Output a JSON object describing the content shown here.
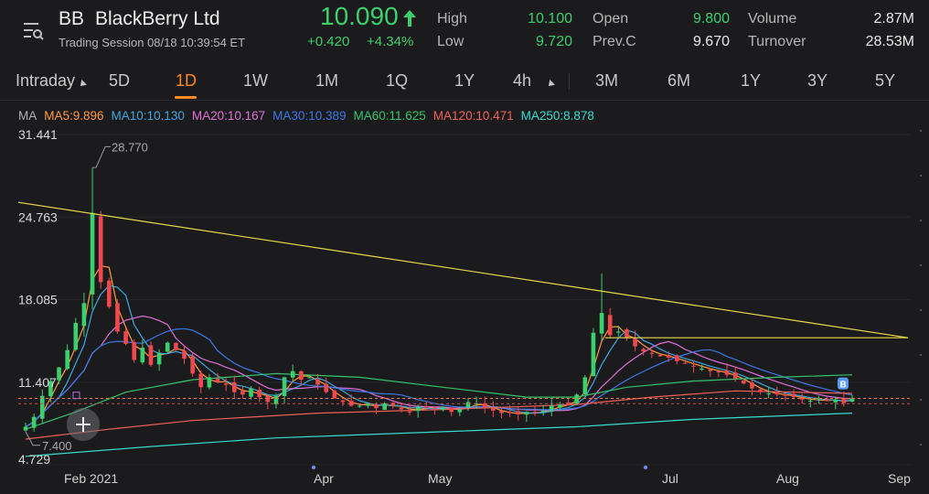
{
  "header": {
    "symbol": "BB",
    "company": "BlackBerry Ltd",
    "session": "Trading Session  08/18 10:39:54 ET",
    "price": "10.090",
    "change": "+0.420",
    "change_pct": "+4.34%",
    "stats": [
      {
        "label": "High",
        "value": "10.100",
        "color": "#3ccf6d"
      },
      {
        "label": "Low",
        "value": "9.720",
        "color": "#3ccf6d"
      },
      {
        "label": "Open",
        "value": "9.800",
        "color": "#3ccf6d"
      },
      {
        "label": "Prev.C",
        "value": "9.670",
        "color": "#e8e8e8"
      },
      {
        "label": "Volume",
        "value": "2.87M",
        "color": "#e8e8e8"
      },
      {
        "label": "Turnover",
        "value": "28.53M",
        "color": "#e8e8e8"
      }
    ]
  },
  "tabs": [
    "Intraday",
    "5D",
    "1D",
    "1W",
    "1M",
    "1Q",
    "1Y",
    "4h",
    "3M",
    "6M",
    "1Y",
    "3Y",
    "5Y"
  ],
  "active_tab": "1D",
  "ma": {
    "label": "MA",
    "items": [
      {
        "text": "MA5:9.896",
        "color": "#ff9a3c"
      },
      {
        "text": "MA10:10.130",
        "color": "#3aa8e0"
      },
      {
        "text": "MA20:10.167",
        "color": "#e070d8"
      },
      {
        "text": "MA30:10.389",
        "color": "#3c78e6"
      },
      {
        "text": "MA60:11.625",
        "color": "#33c56a"
      },
      {
        "text": "MA120:10.471",
        "color": "#f0605a"
      },
      {
        "text": "MA250:8.878",
        "color": "#35dcd2"
      }
    ]
  },
  "chart_data": {
    "type": "candlestick",
    "y_ticks": [
      "31.441",
      "24.763",
      "18.085",
      "11.407",
      "4.729"
    ],
    "ylim": [
      4.729,
      31.441
    ],
    "x_ticks": [
      "Feb 2021",
      "Apr",
      "May",
      "Jul",
      "Aug",
      "Sep"
    ],
    "annotations": {
      "high_label": "28.770",
      "low_label": "7.400"
    },
    "markers": [
      "B"
    ],
    "colors": {
      "up": "#3ccf6d",
      "down": "#f0484e",
      "trendline": "#e8d94a"
    },
    "closes": [
      7.8,
      8.6,
      10.3,
      11.5,
      12.6,
      14.0,
      16.2,
      17.8,
      25.1,
      19.5,
      17.5,
      15.5,
      14.5,
      13.2,
      14.2,
      12.8,
      13.8,
      14.6,
      14.0,
      13.3,
      12.1,
      11.0,
      11.8,
      11.4,
      11.2,
      10.6,
      10.4,
      10.9,
      10.2,
      9.8,
      10.3,
      11.8,
      12.3,
      11.6,
      11.8,
      11.2,
      10.6,
      10.1,
      9.8,
      9.5,
      9.5,
      9.7,
      9.3,
      9.7,
      9.5,
      9.2,
      9.0,
      9.4,
      9.4,
      9.3,
      9.4,
      9.0,
      9.2,
      9.8,
      9.7,
      9.3,
      9.1,
      8.9,
      8.9,
      8.8,
      9.0,
      8.9,
      9.1,
      9.5,
      9.6,
      9.6,
      10.4,
      11.8,
      15.4,
      17.0,
      15.2,
      15.5,
      15.0,
      14.3,
      13.9,
      13.7,
      13.5,
      13.4,
      13.1,
      12.9,
      12.7,
      12.5,
      12.3,
      12.2,
      12.0,
      11.7,
      11.3,
      10.9,
      10.6,
      10.5,
      10.4,
      10.3,
      10.2,
      10.0,
      9.9,
      10.0,
      9.9,
      10.0,
      9.7,
      10.1
    ]
  }
}
